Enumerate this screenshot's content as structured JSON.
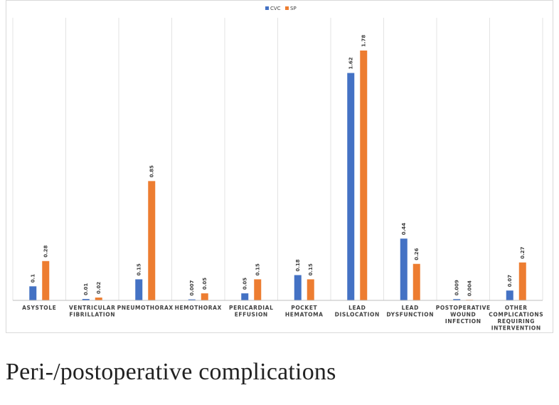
{
  "caption": "Peri-/postoperative complications",
  "chart_data": {
    "type": "bar",
    "title": "",
    "xlabel": "",
    "ylabel": "",
    "ylim": [
      0,
      1.9
    ],
    "grid": "vertical separators between categories",
    "legend_position": "top-center",
    "categories": [
      [
        "ASYSTOLE"
      ],
      [
        "VENTRICULAR",
        "FIBRILLATION"
      ],
      [
        "PNEUMOTHORAX"
      ],
      [
        "HEMOTHORAX"
      ],
      [
        "PERICARDIAL",
        "EFFUSION"
      ],
      [
        "POCKET",
        "HEMATOMA"
      ],
      [
        "LEAD",
        "DISLOCATION"
      ],
      [
        "LEAD",
        "DYSFUNCTION"
      ],
      [
        "POSTOPERATIVE",
        "WOUND",
        "INFECTION"
      ],
      [
        "OTHER",
        "COMPLICATIONS",
        "REQUIRING",
        "INTERVENTION"
      ]
    ],
    "series": [
      {
        "name": "CVC",
        "color": "#4472c4",
        "values": [
          0.1,
          0.01,
          0.15,
          0.007,
          0.05,
          0.18,
          1.62,
          0.44,
          0.009,
          0.07
        ],
        "labels": [
          "0.1",
          "0.01",
          "0.15",
          "0.007",
          "0.05",
          "0.18",
          "1.62",
          "0.44",
          "0.009",
          "0.07"
        ]
      },
      {
        "name": "SP",
        "color": "#ed7d31",
        "values": [
          0.28,
          0.02,
          0.85,
          0.05,
          0.15,
          0.15,
          1.78,
          0.26,
          0.004,
          0.27
        ],
        "labels": [
          "0.28",
          "0.02",
          "0.85",
          "0.05",
          "0.15",
          "0.15",
          "1.78",
          "0.26",
          "0.004",
          "0.27"
        ]
      }
    ]
  }
}
